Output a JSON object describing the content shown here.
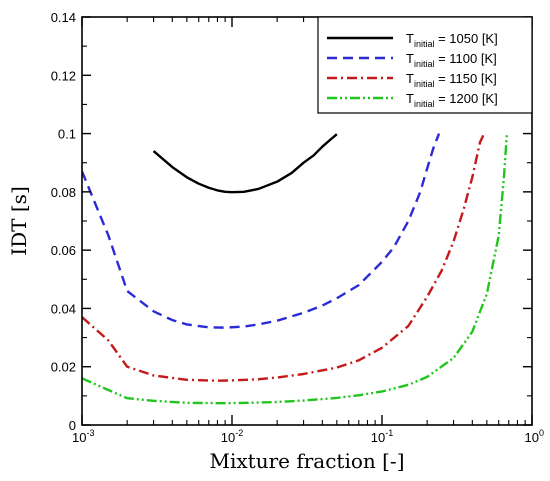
{
  "chart_data": {
    "type": "line",
    "xlabel": "Mixture fraction [-]",
    "ylabel": "IDT [s]",
    "xscale": "log",
    "xlim": [
      0.001,
      1
    ],
    "ylim": [
      0,
      0.14
    ],
    "x_ticks": [
      {
        "value": 0.001,
        "base": "10",
        "exp": "-3"
      },
      {
        "value": 0.01,
        "base": "10",
        "exp": "-2"
      },
      {
        "value": 0.1,
        "base": "10",
        "exp": "-1"
      },
      {
        "value": 1,
        "base": "10",
        "exp": "0"
      }
    ],
    "y_ticks": [
      {
        "value": 0,
        "label": "0"
      },
      {
        "value": 0.02,
        "label": "0.02"
      },
      {
        "value": 0.04,
        "label": "0.04"
      },
      {
        "value": 0.06,
        "label": "0.06"
      },
      {
        "value": 0.08,
        "label": "0.08"
      },
      {
        "value": 0.1,
        "label": "0.1"
      },
      {
        "value": 0.12,
        "label": "0.12"
      },
      {
        "value": 0.14,
        "label": "0.14"
      }
    ],
    "grid": false,
    "legend_position": "top-right",
    "series": [
      {
        "name_prefix": "T",
        "name_sub": "initial",
        "name_suffix": " = 1050 [K]",
        "color": "#000000",
        "dash": "solid",
        "x": [
          0.003,
          0.004,
          0.005,
          0.006,
          0.007,
          0.008,
          0.009,
          0.01,
          0.012,
          0.015,
          0.02,
          0.025,
          0.03,
          0.035,
          0.04,
          0.045,
          0.05
        ],
        "y": [
          0.094,
          0.0885,
          0.085,
          0.0828,
          0.0814,
          0.0805,
          0.08,
          0.0799,
          0.08,
          0.081,
          0.0835,
          0.0865,
          0.09,
          0.0925,
          0.0955,
          0.0978,
          0.0998
        ]
      },
      {
        "name_prefix": "T",
        "name_sub": "initial",
        "name_suffix": " = 1100 [K]",
        "color": "#2a2ad8",
        "dash": "dashed",
        "x": [
          0.001,
          0.0015,
          0.002,
          0.003,
          0.004,
          0.005,
          0.007,
          0.009,
          0.012,
          0.015,
          0.02,
          0.03,
          0.04,
          0.05,
          0.07,
          0.1,
          0.12,
          0.15,
          0.18,
          0.2,
          0.22,
          0.24
        ],
        "y": [
          0.087,
          0.065,
          0.046,
          0.039,
          0.036,
          0.0345,
          0.0335,
          0.0334,
          0.0338,
          0.0345,
          0.0358,
          0.0385,
          0.041,
          0.0435,
          0.048,
          0.056,
          0.061,
          0.07,
          0.08,
          0.088,
          0.095,
          0.1
        ]
      },
      {
        "name_prefix": "T",
        "name_sub": "initial",
        "name_suffix": " = 1150 [K]",
        "color": "#c41a1a",
        "dash": "dashdot",
        "x": [
          0.001,
          0.0015,
          0.002,
          0.003,
          0.005,
          0.008,
          0.01,
          0.015,
          0.02,
          0.03,
          0.05,
          0.07,
          0.1,
          0.15,
          0.2,
          0.25,
          0.3,
          0.35,
          0.4,
          0.45,
          0.48
        ],
        "y": [
          0.037,
          0.029,
          0.02,
          0.017,
          0.0155,
          0.0152,
          0.0153,
          0.0157,
          0.0163,
          0.0175,
          0.0197,
          0.0222,
          0.0265,
          0.034,
          0.044,
          0.053,
          0.063,
          0.074,
          0.085,
          0.097,
          0.1
        ]
      },
      {
        "name_prefix": "T",
        "name_sub": "initial",
        "name_suffix": " = 1200 [K]",
        "color": "#22c51e",
        "dash": "dashdotdot",
        "x": [
          0.001,
          0.0015,
          0.002,
          0.003,
          0.005,
          0.008,
          0.01,
          0.015,
          0.02,
          0.03,
          0.05,
          0.07,
          0.1,
          0.15,
          0.2,
          0.3,
          0.4,
          0.5,
          0.6,
          0.65,
          0.68
        ],
        "y": [
          0.016,
          0.012,
          0.0092,
          0.0083,
          0.0076,
          0.0075,
          0.0075,
          0.0077,
          0.0079,
          0.0084,
          0.0093,
          0.0102,
          0.0115,
          0.0138,
          0.0165,
          0.023,
          0.032,
          0.045,
          0.065,
          0.085,
          0.1
        ]
      }
    ]
  }
}
